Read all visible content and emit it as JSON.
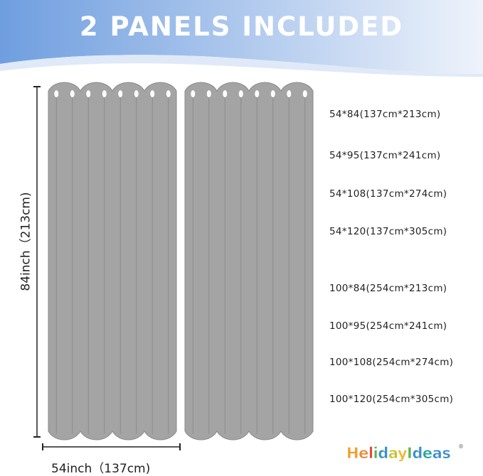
{
  "header": {
    "title": "2 PANELS INCLUDED",
    "gradient_start": "#6f9edf",
    "gradient_end": "#eef3fb"
  },
  "curtain": {
    "color": "#a4a4a4",
    "panels": 2
  },
  "dimensions": {
    "height_label": "84inch（213cm)",
    "width_label": "54inch（137cm)"
  },
  "sizes": [
    "54*84(137cm*213cm)",
    "54*95(137cm*241cm)",
    "54*108(137cm*274cm)",
    "54*120(137cm*305cm)",
    "100*84(254cm*213cm)",
    "100*95(254cm*241cm)",
    "100*108(254cm*274cm)",
    "100*120(254cm*305cm)"
  ],
  "logo": {
    "text": "HelidayIdeas",
    "registered": "®",
    "colors": [
      "#f0a030",
      "#e8893a",
      "#e24a3a",
      "#5db34a",
      "#3a8fd0",
      "#c9c234",
      "#f2b72c",
      "#5db34a",
      "#3a8fd0",
      "#27a6a0",
      "#3a8fd0",
      "#3a8fd0"
    ]
  }
}
